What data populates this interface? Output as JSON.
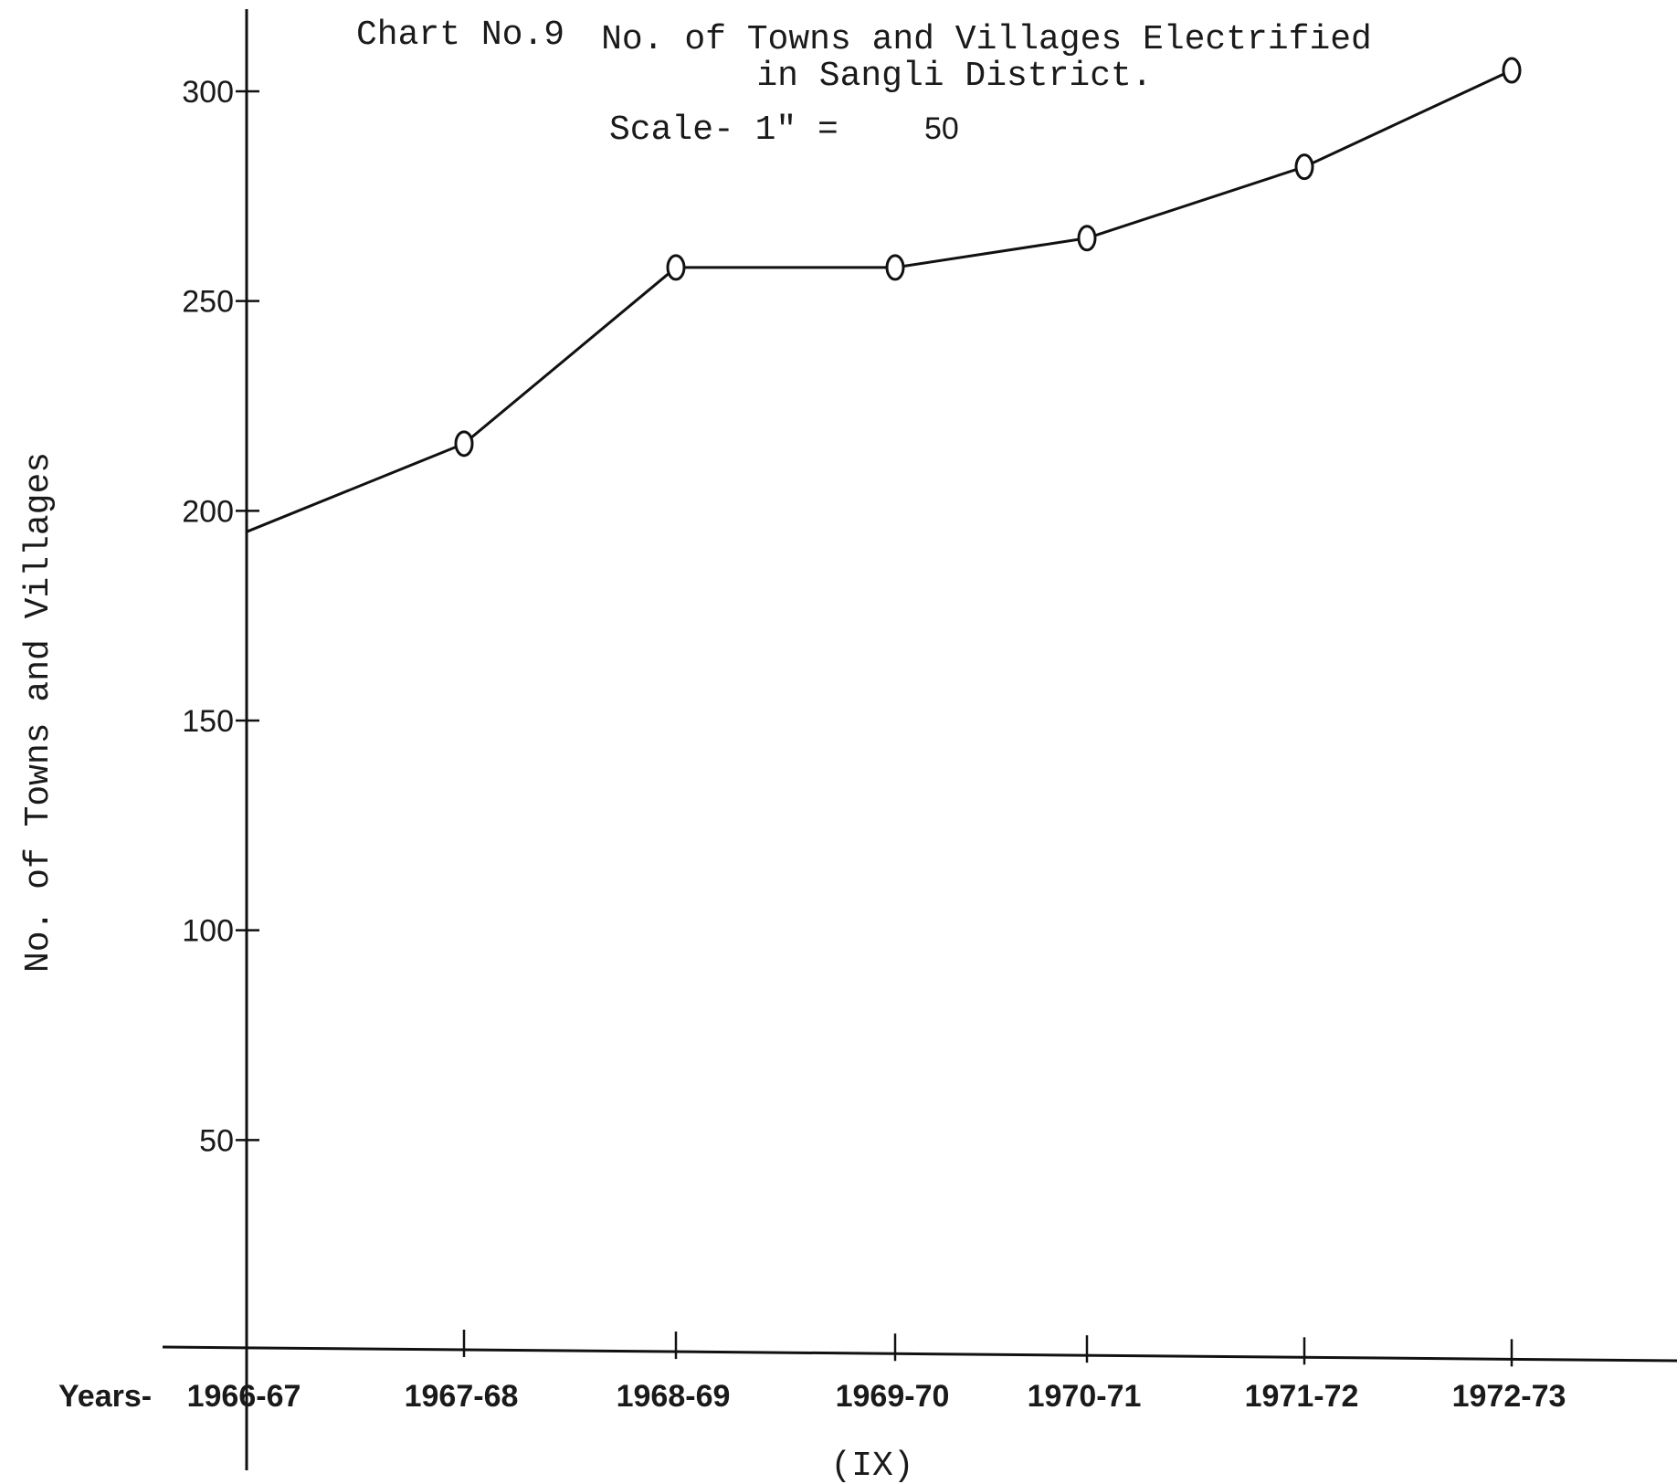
{
  "chart_data": {
    "type": "line",
    "chart_number": "Chart No.9",
    "title": "No. of Towns and Villages Electrified in Sangli District.",
    "title_line1": "No. of Towns and Villages Electrified",
    "title_line2": "in Sangli District.",
    "scale_label": "Scale- 1\" =",
    "scale_value": "50",
    "xlabel_prefix": "Years-",
    "ylabel": "No. of Towns and Villages",
    "footer": "(IX)",
    "categories": [
      "1966-67",
      "1967-68",
      "1968-69",
      "1969-70",
      "1970-71",
      "1971-72",
      "1972-73"
    ],
    "y_ticks": [
      50,
      100,
      150,
      200,
      250,
      300
    ],
    "ylim": [
      0,
      300
    ],
    "grid": false,
    "legend": "none",
    "series": [
      {
        "values": [
          195,
          216,
          258,
          258,
          265,
          282,
          305
        ]
      }
    ],
    "markers": "open circles (except first point)"
  }
}
